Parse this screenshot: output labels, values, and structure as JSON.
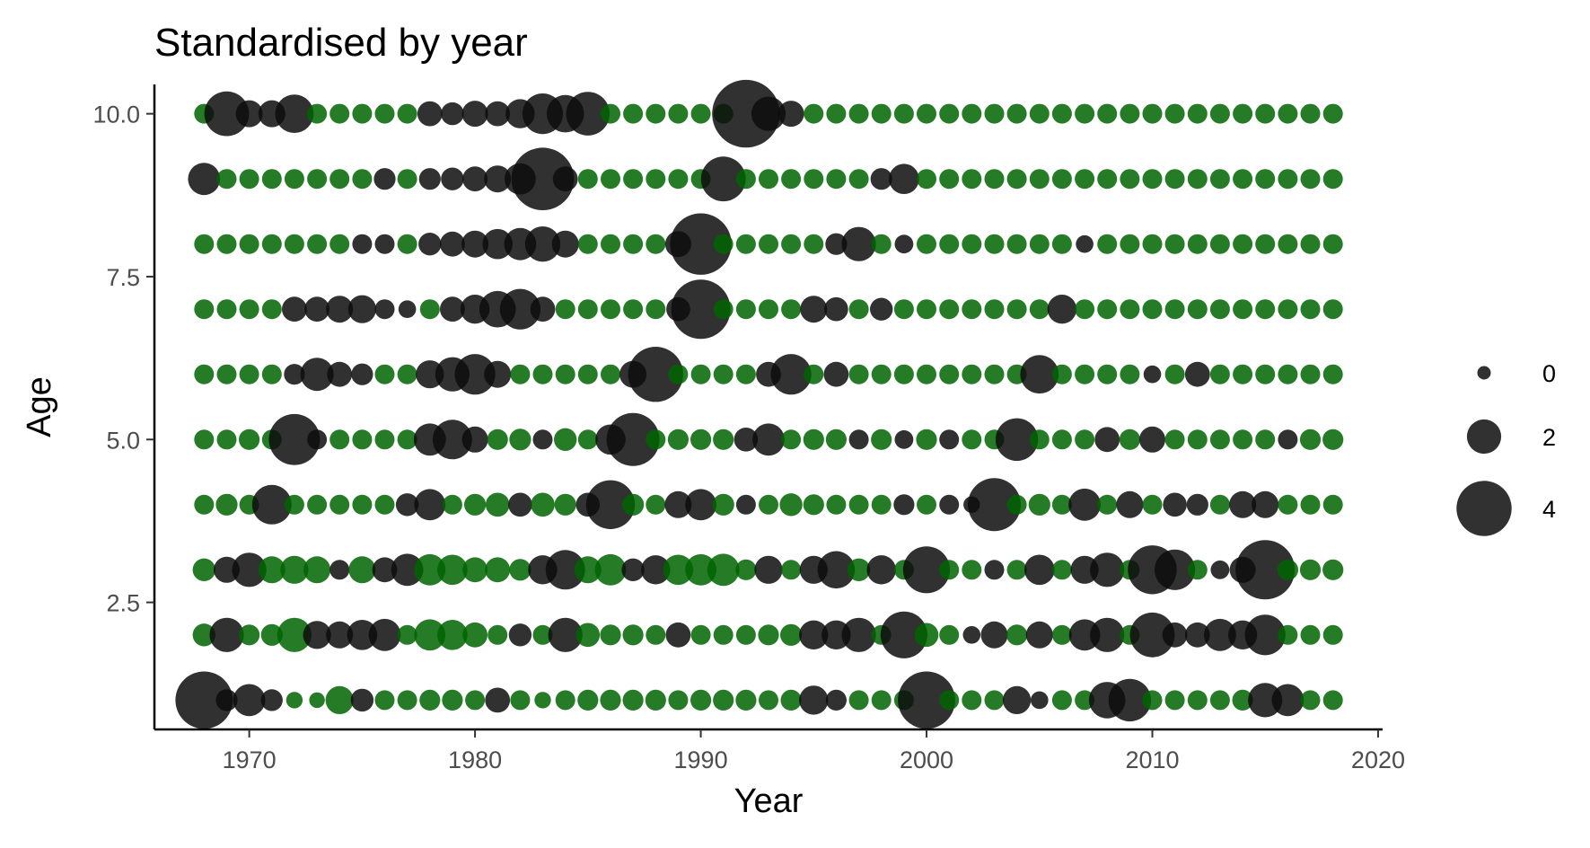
{
  "chart_data": {
    "type": "scatter",
    "title": "Standardised by year",
    "xlabel": "Year",
    "ylabel": "Age",
    "xlim": [
      1965.8,
      2020.2
    ],
    "ylim": [
      0.55,
      10.45
    ],
    "x_ticks": [
      1970,
      1980,
      1990,
      2000,
      2010,
      2020
    ],
    "x_tick_labels": [
      "1970",
      "1980",
      "1990",
      "2000",
      "2010",
      "2020"
    ],
    "y_ticks": [
      2.5,
      5.0,
      7.5,
      10.0
    ],
    "y_tick_labels": [
      "2.5",
      "5.0",
      "7.5",
      "10.0"
    ],
    "grid": false,
    "legend": {
      "position": "right",
      "entries": [
        {
          "label": "0",
          "size": 0
        },
        {
          "label": "2",
          "size": 2
        },
        {
          "label": "4",
          "size": 4
        }
      ]
    },
    "colors": {
      "positive": "#0d0d0d",
      "negative": "#006400"
    },
    "years_start": 1968,
    "ages": [
      1,
      2,
      3,
      4,
      5,
      6,
      7,
      8,
      9,
      10
    ],
    "residuals_by_age": {
      "1": [
        4.2,
        0.8,
        1.8,
        0.8,
        -0.3,
        -0.2,
        -1.4,
        0.9,
        -0.6,
        -0.6,
        -0.7,
        -0.7,
        -0.6,
        1.1,
        -0.6,
        -0.3,
        -0.6,
        -0.7,
        -0.7,
        -0.7,
        -0.7,
        -0.6,
        -0.7,
        -0.7,
        -0.7,
        -0.6,
        -0.7,
        1.5,
        0.7,
        -0.6,
        -0.6,
        -0.6,
        4.2,
        -0.6,
        -0.6,
        -0.6,
        1.4,
        0.4,
        -0.6,
        -0.6,
        2.2,
        2.8,
        -0.6,
        -0.6,
        -0.6,
        -0.6,
        -0.7,
        2.0,
        1.8,
        -0.6,
        -0.6
      ],
      "2": [
        -0.9,
        2.0,
        -0.7,
        -0.8,
        -2.0,
        1.4,
        1.3,
        1.6,
        1.8,
        -0.6,
        -1.7,
        -1.6,
        -1.1,
        -0.6,
        0.9,
        -0.6,
        2.0,
        -1.0,
        -0.7,
        -0.7,
        -0.6,
        1.1,
        -0.6,
        -0.6,
        -0.6,
        -0.7,
        -0.8,
        1.5,
        1.5,
        2.0,
        -0.6,
        3.2,
        -1.0,
        -0.6,
        0.4,
        1.3,
        -0.7,
        1.3,
        -0.6,
        1.7,
        2.0,
        -0.6,
        3.0,
        1.1,
        1.1,
        1.8,
        1.5,
        2.6,
        -0.6,
        -0.6,
        -0.6
      ],
      "3": [
        -0.9,
        1.2,
        2.0,
        -1.3,
        -1.4,
        -1.3,
        0.6,
        -1.3,
        1.1,
        1.8,
        -1.7,
        -1.6,
        -1.1,
        -1.1,
        -0.8,
        1.5,
        2.5,
        -1.3,
        -1.7,
        0.9,
        1.5,
        -1.6,
        -1.7,
        -1.8,
        -0.7,
        1.4,
        -0.6,
        1.4,
        2.3,
        -0.9,
        1.5,
        -0.6,
        3.2,
        -0.6,
        -0.6,
        0.6,
        -0.6,
        1.6,
        -0.6,
        1.4,
        2.0,
        -0.6,
        3.4,
        2.6,
        -0.6,
        0.5,
        1.2,
        4.4,
        -0.7,
        -0.7,
        -0.7
      ],
      "4": [
        -0.6,
        -0.8,
        -0.6,
        2.5,
        -0.6,
        -0.6,
        -0.6,
        -0.6,
        -0.6,
        0.9,
        1.7,
        -0.6,
        -0.8,
        -1.0,
        1.0,
        -1.0,
        -0.8,
        1.0,
        3.4,
        -0.8,
        -0.6,
        1.3,
        1.7,
        -0.8,
        0.6,
        -0.6,
        -0.9,
        -0.7,
        -0.6,
        -0.6,
        -0.6,
        0.7,
        -0.6,
        0.6,
        0.3,
        3.8,
        -0.6,
        -0.8,
        -0.6,
        1.8,
        -0.6,
        1.3,
        -0.6,
        1.0,
        0.8,
        -0.6,
        1.3,
        1.3,
        -0.6,
        -0.6,
        -0.6
      ],
      "5": [
        -0.6,
        -0.6,
        -0.7,
        -0.6,
        3.6,
        0.6,
        -0.6,
        -0.6,
        -0.6,
        -0.6,
        1.8,
        2.5,
        1.2,
        -0.7,
        -0.8,
        0.6,
        -0.9,
        -0.6,
        1.6,
        3.8,
        -0.6,
        -0.7,
        -0.7,
        -0.7,
        1.0,
        1.8,
        -0.6,
        -0.7,
        -0.7,
        0.6,
        -0.7,
        0.5,
        -0.7,
        0.6,
        -0.6,
        -0.6,
        2.8,
        -0.6,
        -0.6,
        -0.6,
        1.1,
        -0.7,
        1.2,
        -0.6,
        -0.6,
        -0.6,
        -0.6,
        -0.6,
        0.6,
        -0.7,
        -0.7
      ],
      "6": [
        -0.6,
        -0.6,
        -0.6,
        -0.6,
        0.7,
        1.9,
        1.1,
        0.8,
        -0.6,
        -0.6,
        1.4,
        2.0,
        2.6,
        1.3,
        -0.6,
        -0.6,
        -0.6,
        -0.6,
        -0.6,
        1.3,
        4.0,
        -0.6,
        -0.6,
        -0.6,
        -0.6,
        1.1,
        2.6,
        -0.6,
        1.1,
        -0.6,
        -0.6,
        -0.6,
        -0.6,
        -0.6,
        -0.6,
        -0.6,
        -0.6,
        2.4,
        -0.6,
        -0.6,
        -0.6,
        -0.6,
        0.4,
        -0.6,
        1.1,
        -0.6,
        -0.6,
        -0.6,
        -0.6,
        -0.6,
        -0.6
      ],
      "7": [
        -0.6,
        -0.6,
        -0.6,
        -0.6,
        1.1,
        1.1,
        1.3,
        1.4,
        0.6,
        0.4,
        -0.6,
        1.1,
        1.5,
        2.2,
        2.6,
        1.1,
        -0.6,
        -0.6,
        -0.6,
        -0.6,
        -0.6,
        1.0,
        4.4,
        -0.6,
        -0.6,
        -0.6,
        -0.6,
        1.3,
        1.0,
        -0.6,
        0.9,
        -0.6,
        -0.6,
        -0.6,
        -0.6,
        -0.6,
        -0.6,
        -0.6,
        1.5,
        -0.6,
        -0.6,
        -0.6,
        -0.6,
        -0.6,
        -0.6,
        -0.6,
        -0.6,
        -0.6,
        -0.6,
        -0.6,
        -0.6
      ],
      "8": [
        -0.6,
        -0.6,
        -0.6,
        -0.6,
        -0.6,
        -0.6,
        -0.6,
        0.6,
        0.6,
        -0.6,
        0.9,
        1.1,
        1.3,
        1.6,
        1.8,
        2.1,
        1.3,
        -0.6,
        -0.6,
        -0.6,
        -0.6,
        1.2,
        4.6,
        -0.6,
        -0.6,
        -0.6,
        -0.6,
        -0.6,
        0.8,
        2.0,
        -0.6,
        0.5,
        -0.6,
        -0.6,
        -0.6,
        -0.6,
        -0.6,
        -0.6,
        -0.6,
        0.4,
        -0.6,
        -0.6,
        -0.6,
        -0.6,
        -0.6,
        -0.6,
        -0.6,
        -0.6,
        -0.6,
        -0.6,
        -0.6
      ],
      "9": [
        1.8,
        -0.6,
        -0.6,
        -0.6,
        -0.6,
        -0.6,
        -0.6,
        -0.6,
        0.8,
        -0.6,
        0.8,
        0.9,
        1.1,
        1.3,
        1.7,
        4.7,
        1.1,
        -0.6,
        -0.6,
        -0.6,
        -0.6,
        -0.6,
        -0.6,
        3.0,
        -0.6,
        -0.6,
        -0.6,
        -0.6,
        -0.6,
        -0.6,
        0.8,
        1.6,
        -0.6,
        -0.6,
        -0.6,
        -0.6,
        -0.6,
        -0.6,
        -0.6,
        -0.6,
        -0.6,
        -0.6,
        -0.6,
        -0.6,
        -0.6,
        -0.6,
        -0.6,
        -0.6,
        -0.6,
        -0.6,
        -0.6
      ],
      "10": [
        -0.6,
        3.0,
        1.3,
        1.3,
        2.4,
        -0.6,
        -0.6,
        -0.6,
        -0.6,
        -0.6,
        1.1,
        0.9,
        1.2,
        1.1,
        1.5,
        2.6,
        2.3,
        2.9,
        -0.6,
        -0.6,
        -0.6,
        -0.6,
        -0.6,
        -0.6,
        5.2,
        2.0,
        1.2,
        -0.6,
        -0.6,
        -0.6,
        -0.6,
        -0.6,
        -0.6,
        -0.6,
        -0.6,
        -0.6,
        -0.6,
        -0.6,
        -0.6,
        -0.6,
        -0.6,
        -0.6,
        -0.6,
        -0.6,
        -0.6,
        -0.6,
        -0.6,
        -0.6,
        -0.6,
        -0.6,
        -0.6
      ]
    }
  }
}
